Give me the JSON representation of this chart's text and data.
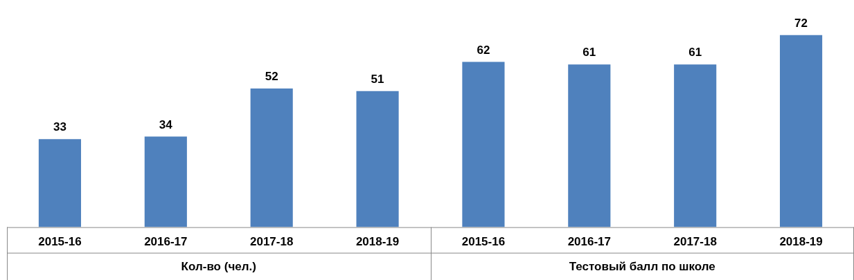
{
  "chart_data": {
    "type": "bar",
    "categories": [
      "2015-16",
      "2016-17",
      "2017-18",
      "2018-19",
      "2015-16",
      "2016-17",
      "2017-18",
      "2018-19"
    ],
    "values": [
      33,
      34,
      52,
      51,
      62,
      61,
      61,
      72
    ],
    "color": "#4f81bd",
    "data_labels": true,
    "annotations": [
      "Кол-во (чел.)",
      "Тестовый балл по школе"
    ],
    "grid": false,
    "legend": false
  }
}
